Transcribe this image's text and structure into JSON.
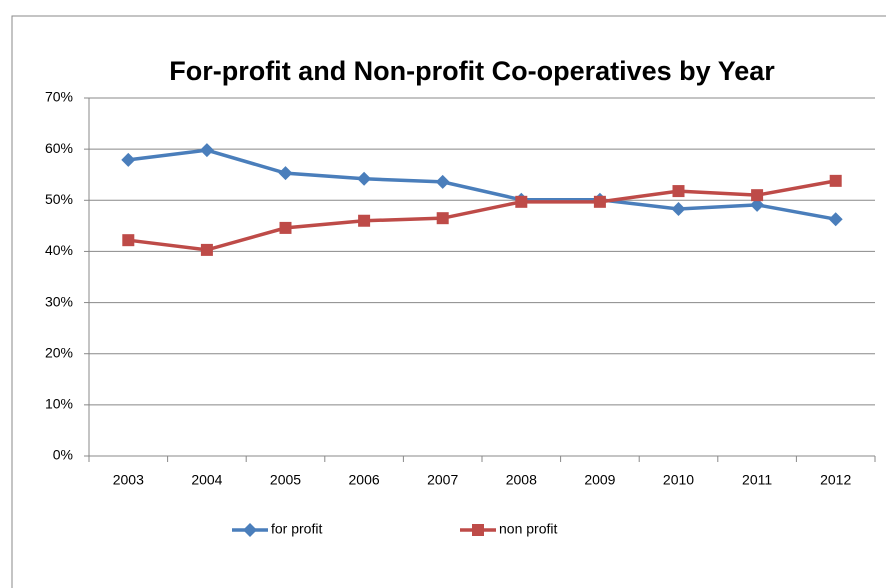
{
  "chart_data": {
    "type": "line",
    "title": "For-profit and Non-profit Co-operatives by Year",
    "categories": [
      "2003",
      "2004",
      "2005",
      "2006",
      "2007",
      "2008",
      "2009",
      "2010",
      "2011",
      "2012"
    ],
    "series": [
      {
        "name": "for profit",
        "color": "#4a7ebb",
        "marker": "diamond",
        "values": [
          57.9,
          59.8,
          55.3,
          54.2,
          53.6,
          50.1,
          50.1,
          48.3,
          49.1,
          46.3
        ]
      },
      {
        "name": "non profit",
        "color": "#be4b48",
        "marker": "square",
        "values": [
          42.2,
          40.3,
          44.6,
          46.0,
          46.5,
          49.7,
          49.7,
          51.8,
          51.0,
          53.8
        ]
      }
    ],
    "ylim": [
      0,
      70
    ],
    "yticks": [
      {
        "value": 0,
        "label": "0%"
      },
      {
        "value": 10,
        "label": "10%"
      },
      {
        "value": 20,
        "label": "20%"
      },
      {
        "value": 30,
        "label": "30%"
      },
      {
        "value": 40,
        "label": "40%"
      },
      {
        "value": 50,
        "label": "50%"
      },
      {
        "value": 60,
        "label": "60%"
      },
      {
        "value": 70,
        "label": "70%"
      }
    ],
    "grid": true,
    "legend": "bottom"
  }
}
